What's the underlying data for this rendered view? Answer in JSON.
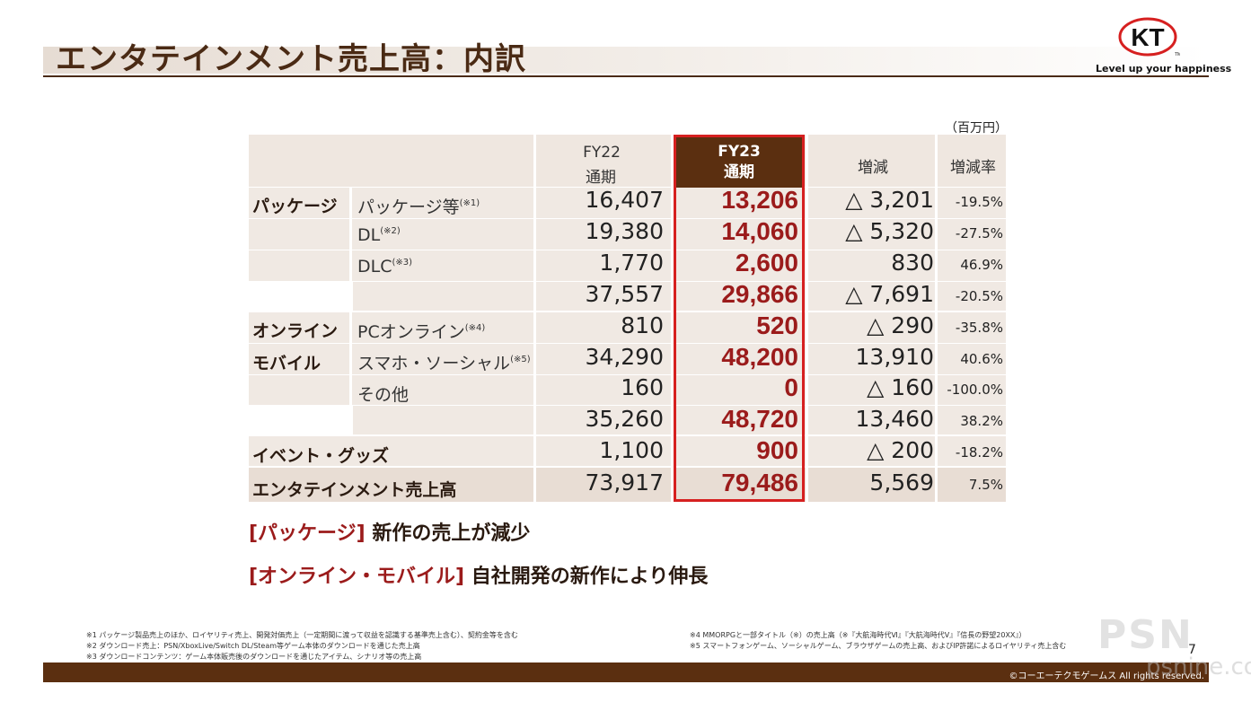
{
  "header": {
    "title": "エンタテインメント売上高：内訳",
    "logo_text": "KT",
    "logo_tm": "TM",
    "tagline": "Level up your happiness"
  },
  "unit": "（百万円）",
  "table": {
    "col_fy22_line1": "FY22",
    "col_fy22_line2": "通期",
    "col_fy23_line1": "FY23",
    "col_fy23_line2": "通期",
    "col_change": "増減",
    "col_rate": "増減率",
    "groups": {
      "package_label": "パッケージ",
      "online_label_1": "オンライン",
      "online_label_2": "モバイル",
      "event_label": "イベント・グッズ",
      "total_label": "エンタテインメント売上高"
    },
    "rows": [
      {
        "label": "パッケージ等",
        "note": "(※1)",
        "fy22": "16,407",
        "fy23": "13,206",
        "change": "△ 3,201",
        "rate": "-19.5%"
      },
      {
        "label": "DL",
        "note": "(※2)",
        "fy22": "19,380",
        "fy23": "14,060",
        "change": "△ 5,320",
        "rate": "-27.5%"
      },
      {
        "label": "DLC",
        "note": "(※3)",
        "fy22": "1,770",
        "fy23": "2,600",
        "change": "830",
        "rate": "46.9%"
      },
      {
        "label": "",
        "note": "",
        "fy22": "37,557",
        "fy23": "29,866",
        "change": "△ 7,691",
        "rate": "-20.5%"
      },
      {
        "label": "PCオンライン",
        "note": "(※4)",
        "fy22": "810",
        "fy23": "520",
        "change": "△ 290",
        "rate": "-35.8%"
      },
      {
        "label": "スマホ・ソーシャル",
        "note": "(※5)",
        "fy22": "34,290",
        "fy23": "48,200",
        "change": "13,910",
        "rate": "40.6%"
      },
      {
        "label": "その他",
        "note": "",
        "fy22": "160",
        "fy23": "0",
        "change": "△ 160",
        "rate": "-100.0%"
      },
      {
        "label": "",
        "note": "",
        "fy22": "35,260",
        "fy23": "48,720",
        "change": "13,460",
        "rate": "38.2%"
      },
      {
        "label": "",
        "note": "",
        "fy22": "1,100",
        "fy23": "900",
        "change": "△ 200",
        "rate": "-18.2%"
      },
      {
        "label": "",
        "note": "",
        "fy22": "73,917",
        "fy23": "79,486",
        "change": "5,569",
        "rate": "7.5%"
      }
    ]
  },
  "bullets": [
    {
      "bracket": "[パッケージ]",
      "text": "新作の売上が減少"
    },
    {
      "bracket": "[オンライン・モバイル]",
      "text": "自社開発の新作により伸長"
    }
  ],
  "footnotes_left": [
    "※1 パッケージ製品売上のほか、ロイヤリティ売上、開発対価売上（一定期間に渡って収益を認識する基準売上含む）、契約金等を含む",
    "※2 ダウンロード売上：PSN/XboxLive/Switch DL/Steam等ゲーム本体のダウンロードを通じた売上高",
    "※3 ダウンロードコンテンツ：ゲーム本体販売後のダウンロードを通じたアイテム、シナリオ等の売上高"
  ],
  "footnotes_right": [
    "※4 MMORPGと一部タイトル（※）の売上高（※『大航海時代Ⅵ』『大航海時代Ⅴ』『信長の野望20XX』）",
    "※5 スマートフォンゲーム、ソーシャルゲーム、ブラウザゲームの売上高、およびIP許諾によるロイヤリティ売上含む"
  ],
  "page_number": "7",
  "copyright": "©コーエーテクモゲームス All rights reserved.",
  "watermark": {
    "main": "PSN",
    "sub": "psnine.com"
  },
  "colors": {
    "brand_brown": "#5b2f10",
    "highlight_red": "#d62020",
    "fy23_text": "#9b1b1b"
  }
}
